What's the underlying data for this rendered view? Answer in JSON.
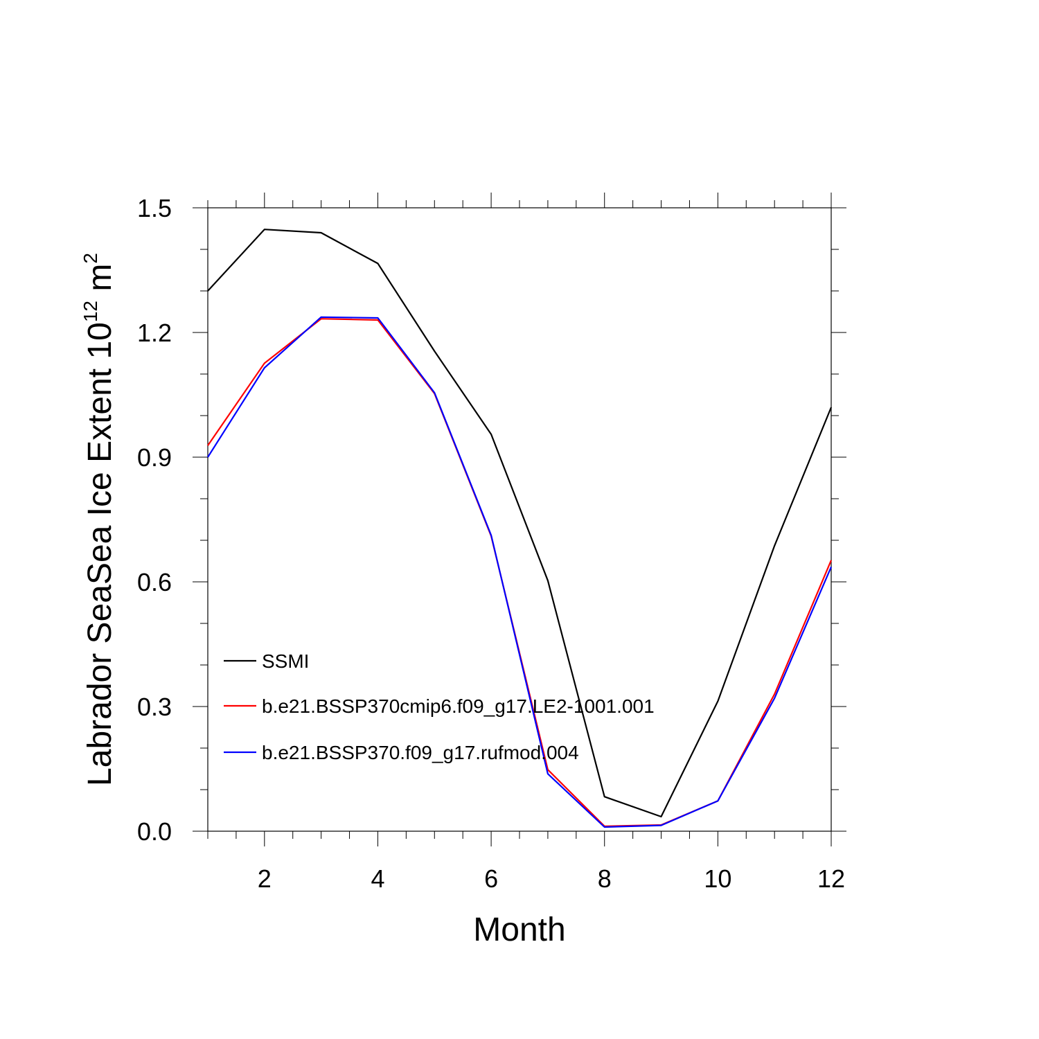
{
  "chart_data": {
    "type": "line",
    "title": "",
    "xlabel": "Month",
    "ylabel": "Labrador SeaSea Ice Extent 10",
    "ylabel_superscript": "12",
    "ylabel_unit": " m",
    "ylabel_unit_superscript": "2",
    "xlim": [
      1,
      12
    ],
    "ylim": [
      0,
      1.5
    ],
    "x_ticks": [
      2,
      4,
      6,
      8,
      10,
      12
    ],
    "x_tick_labels": [
      "2",
      "4",
      "6",
      "8",
      "10",
      "12"
    ],
    "y_ticks": [
      0,
      0.3,
      0.6,
      0.9,
      1.2,
      1.5
    ],
    "y_tick_labels": [
      "0.0",
      "0.3",
      "0.6",
      "0.9",
      "1.2",
      "1.5"
    ],
    "grid": false,
    "legend_position": "bottom-left",
    "x": [
      1,
      2,
      3,
      4,
      5,
      6,
      7,
      8,
      9,
      10,
      11,
      12
    ],
    "series": [
      {
        "name": "SSMI",
        "color": "#000000",
        "values": [
          1.3,
          1.448,
          1.44,
          1.366,
          1.155,
          0.955,
          0.603,
          0.083,
          0.035,
          0.313,
          0.687,
          1.02
        ]
      },
      {
        "name": "b.e21.BSSP370cmip6.f09_g17.LE2-1001.001",
        "color": "#ff0000",
        "values": [
          0.928,
          1.126,
          1.233,
          1.23,
          1.053,
          0.71,
          0.148,
          0.012,
          0.015,
          0.073,
          0.33,
          0.652
        ]
      },
      {
        "name": "b.e21.BSSP370.f09_g17.rufmod.004",
        "color": "#0000ff",
        "values": [
          0.9,
          1.115,
          1.237,
          1.235,
          1.055,
          0.712,
          0.138,
          0.01,
          0.014,
          0.073,
          0.32,
          0.636
        ]
      }
    ]
  }
}
